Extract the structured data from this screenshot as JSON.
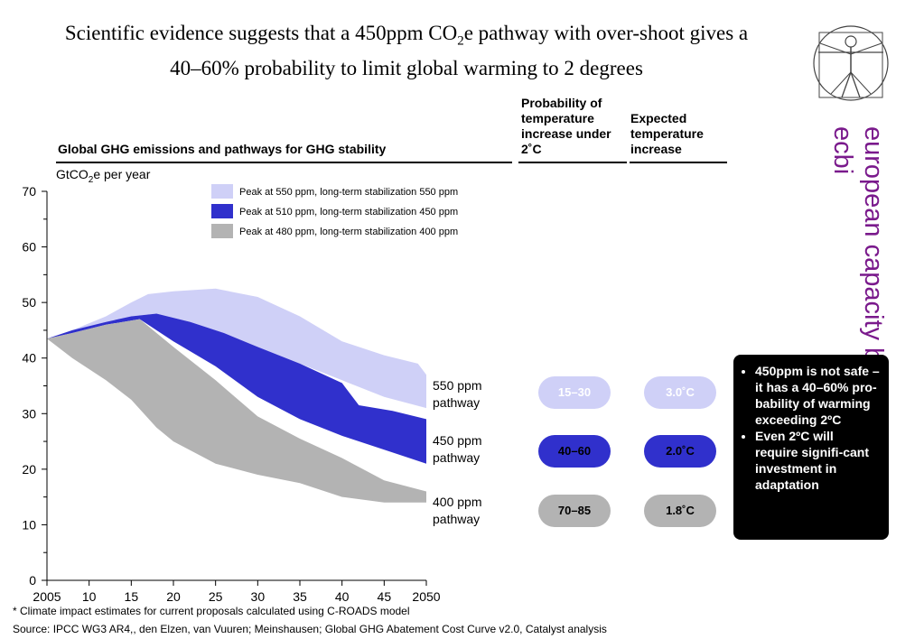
{
  "title": {
    "part1": "Scientific evidence suggests that a 450ppm CO",
    "sub": "2",
    "part2": "e pathway with over-shoot gives a",
    "line2": "40–60% probability to limit global warming to 2 degrees"
  },
  "brand": {
    "line1": "european capacity building initiative",
    "line2": "ecbi"
  },
  "headers": {
    "chart": "Global GHG emissions and pathways for GHG stability",
    "probability": "Probability of temperature increase under 2˚C",
    "expected": "Expected temperature increase"
  },
  "unit": {
    "main": "GtCO",
    "sub": "2",
    "rest": "e per year"
  },
  "chart_data": {
    "type": "area",
    "title": "Global GHG emissions and pathways for GHG stability",
    "ylabel": "GtCO2e per year",
    "xlabel": "",
    "xlim": [
      2005,
      2050
    ],
    "ylim": [
      0,
      70
    ],
    "x_ticks": [
      2005,
      2010,
      2015,
      2020,
      2025,
      2030,
      2035,
      2040,
      2045,
      2050
    ],
    "x_tick_labels": [
      "2005",
      "10",
      "15",
      "20",
      "25",
      "30",
      "35",
      "40",
      "45",
      "2050"
    ],
    "y_ticks": [
      0,
      10,
      20,
      30,
      40,
      50,
      60,
      70
    ],
    "legend_position": "top",
    "series": [
      {
        "name": "Peak at 550 ppm, long-term stabilization 550 ppm",
        "pathway_label": "550 ppm pathway",
        "color": "#cfd0f7",
        "upper": [
          [
            2005,
            43.5
          ],
          [
            2008,
            45
          ],
          [
            2012,
            47.5
          ],
          [
            2015,
            50
          ],
          [
            2017,
            51.5
          ],
          [
            2020,
            52
          ],
          [
            2025,
            52.5
          ],
          [
            2030,
            51
          ],
          [
            2035,
            47.5
          ],
          [
            2040,
            43
          ],
          [
            2045,
            40.5
          ],
          [
            2049,
            39
          ],
          [
            2050,
            37
          ]
        ],
        "lower": [
          [
            2005,
            43.5
          ],
          [
            2008,
            45
          ],
          [
            2012,
            46.5
          ],
          [
            2015,
            47.5
          ],
          [
            2018,
            48
          ],
          [
            2022,
            46.5
          ],
          [
            2026,
            44.5
          ],
          [
            2030,
            42
          ],
          [
            2035,
            39
          ],
          [
            2040,
            36
          ],
          [
            2045,
            33
          ],
          [
            2050,
            31
          ]
        ]
      },
      {
        "name": "Peak at 510 ppm, long-term stabilization 450 ppm",
        "pathway_label": "450 ppm pathway",
        "color": "#3030cc",
        "upper": [
          [
            2005,
            43.5
          ],
          [
            2008,
            45
          ],
          [
            2012,
            46.5
          ],
          [
            2015,
            47.5
          ],
          [
            2018,
            48
          ],
          [
            2022,
            46.5
          ],
          [
            2026,
            44.5
          ],
          [
            2030,
            42
          ],
          [
            2035,
            39
          ],
          [
            2040,
            35.5
          ],
          [
            2042,
            31.5
          ],
          [
            2046,
            30.5
          ],
          [
            2050,
            29
          ]
        ],
        "lower": [
          [
            2005,
            43.5
          ],
          [
            2008,
            44.5
          ],
          [
            2012,
            46
          ],
          [
            2016,
            47
          ],
          [
            2020,
            43
          ],
          [
            2025,
            38.5
          ],
          [
            2030,
            33
          ],
          [
            2035,
            29
          ],
          [
            2040,
            26
          ],
          [
            2045,
            23.5
          ],
          [
            2050,
            21
          ]
        ]
      },
      {
        "name": "Peak at 480 ppm, long-term stabilization 400 ppm",
        "pathway_label": "400 ppm pathway",
        "color": "#b3b3b3",
        "upper": [
          [
            2005,
            43.5
          ],
          [
            2008,
            44.5
          ],
          [
            2012,
            46
          ],
          [
            2016,
            47
          ],
          [
            2020,
            42
          ],
          [
            2025,
            36
          ],
          [
            2030,
            29.5
          ],
          [
            2035,
            25.5
          ],
          [
            2040,
            22
          ],
          [
            2045,
            18
          ],
          [
            2050,
            16
          ]
        ],
        "lower": [
          [
            2005,
            43.5
          ],
          [
            2008,
            40
          ],
          [
            2012,
            36
          ],
          [
            2015,
            32.5
          ],
          [
            2018,
            27.5
          ],
          [
            2020,
            25
          ],
          [
            2025,
            21
          ],
          [
            2030,
            19
          ],
          [
            2035,
            17.5
          ],
          [
            2040,
            15
          ],
          [
            2045,
            14
          ],
          [
            2050,
            14
          ]
        ]
      }
    ]
  },
  "pathways": [
    {
      "line1": "550 ppm",
      "line2": "pathway",
      "probability": "15–30",
      "expected": "3.0˚C",
      "color": "#cfd0f7",
      "text_color": "#ffffff"
    },
    {
      "line1": "450 ppm",
      "line2": "pathway",
      "probability": "40–60",
      "expected": "2.0˚C",
      "color": "#3030cc",
      "text_color": "#000000"
    },
    {
      "line1": "400 ppm",
      "line2": "pathway",
      "probability": "70–85",
      "expected": "1.8˚C",
      "color": "#b3b3b3",
      "text_color": "#000000"
    }
  ],
  "callout": {
    "bullet1": "450ppm is not safe – it has a 40–60%  pro-bability of warming exceeding 2ºC",
    "bullet2": "Even 2ºC will require signifi-cant investment in adaptation"
  },
  "footnotes": {
    "note": "* Climate impact estimates for current proposals calculated using C-ROADS model",
    "source": "Source: IPCC WG3 AR4,, den Elzen, van Vuuren; Meinshausen; Global GHG Abatement Cost Curve v2.0, Catalyst analysis"
  }
}
